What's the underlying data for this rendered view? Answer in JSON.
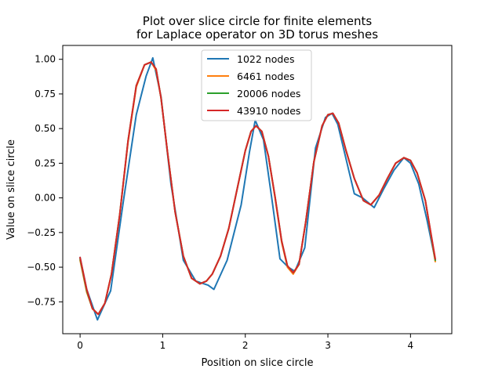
{
  "chart_data": {
    "type": "line",
    "title": "Plot over slice circle for finite elements",
    "subtitle": "for Laplace operator on 3D torus meshes",
    "xlabel": "Position on slice circle",
    "ylabel": "Value on slice circle",
    "xlim": [
      -0.21,
      4.5
    ],
    "ylim": [
      -0.98,
      1.1
    ],
    "xticks": [
      0,
      1,
      2,
      3,
      4
    ],
    "xtick_labels": [
      "0",
      "1",
      "2",
      "3",
      "4"
    ],
    "yticks": [
      -0.75,
      -0.5,
      -0.25,
      0.0,
      0.25,
      0.5,
      0.75,
      1.0
    ],
    "ytick_labels": [
      "−0.75",
      "−0.50",
      "−0.25",
      "0.00",
      "0.25",
      "0.50",
      "0.75",
      "1.00"
    ],
    "grid": false,
    "legend_position": "top-center",
    "series": [
      {
        "name": "1022 nodes",
        "color": "#1f77b4",
        "x": [
          0.0,
          0.08,
          0.21,
          0.37,
          0.52,
          0.68,
          0.8,
          0.88,
          0.98,
          1.1,
          1.25,
          1.4,
          1.5,
          1.55,
          1.62,
          1.78,
          1.95,
          2.05,
          2.12,
          2.22,
          2.32,
          2.42,
          2.52,
          2.6,
          2.72,
          2.85,
          2.97,
          3.05,
          3.12,
          3.22,
          3.32,
          3.42,
          3.56,
          3.68,
          3.8,
          3.92,
          4.0,
          4.1,
          4.2,
          4.3
        ],
        "y": [
          -0.43,
          -0.66,
          -0.88,
          -0.67,
          -0.04,
          0.6,
          0.88,
          1.01,
          0.73,
          0.1,
          -0.45,
          -0.6,
          -0.62,
          -0.63,
          -0.66,
          -0.45,
          -0.05,
          0.33,
          0.56,
          0.42,
          0.0,
          -0.44,
          -0.5,
          -0.53,
          -0.36,
          0.36,
          0.58,
          0.61,
          0.53,
          0.28,
          0.03,
          0.0,
          -0.07,
          0.07,
          0.2,
          0.29,
          0.25,
          0.1,
          -0.16,
          -0.45
        ]
      },
      {
        "name": "6461 nodes",
        "color": "#ff7f0e",
        "x": [
          0.0,
          0.08,
          0.15,
          0.22,
          0.3,
          0.38,
          0.48,
          0.58,
          0.68,
          0.78,
          0.86,
          0.92,
          0.98,
          1.06,
          1.15,
          1.25,
          1.35,
          1.45,
          1.53,
          1.6,
          1.7,
          1.8,
          1.9,
          2.0,
          2.07,
          2.13,
          2.2,
          2.28,
          2.36,
          2.44,
          2.51,
          2.58,
          2.65,
          2.73,
          2.83,
          2.93,
          3.0,
          3.06,
          3.13,
          3.22,
          3.32,
          3.43,
          3.52,
          3.62,
          3.72,
          3.82,
          3.92,
          4.0,
          4.08,
          4.18,
          4.3
        ],
        "y": [
          -0.45,
          -0.68,
          -0.8,
          -0.84,
          -0.76,
          -0.55,
          -0.12,
          0.4,
          0.8,
          0.96,
          0.98,
          0.92,
          0.72,
          0.32,
          -0.1,
          -0.42,
          -0.58,
          -0.62,
          -0.6,
          -0.55,
          -0.42,
          -0.22,
          0.06,
          0.34,
          0.48,
          0.52,
          0.48,
          0.3,
          0.0,
          -0.32,
          -0.5,
          -0.55,
          -0.48,
          -0.18,
          0.26,
          0.52,
          0.6,
          0.61,
          0.54,
          0.34,
          0.14,
          -0.02,
          -0.05,
          0.02,
          0.14,
          0.25,
          0.29,
          0.27,
          0.18,
          -0.02,
          -0.46
        ]
      },
      {
        "name": "20006 nodes",
        "color": "#2ca02c",
        "x": [
          0.0,
          0.08,
          0.15,
          0.22,
          0.3,
          0.38,
          0.48,
          0.58,
          0.68,
          0.78,
          0.86,
          0.92,
          0.98,
          1.06,
          1.15,
          1.25,
          1.35,
          1.45,
          1.53,
          1.6,
          1.7,
          1.8,
          1.9,
          2.0,
          2.07,
          2.13,
          2.2,
          2.28,
          2.36,
          2.44,
          2.51,
          2.58,
          2.65,
          2.73,
          2.83,
          2.93,
          3.0,
          3.06,
          3.13,
          3.22,
          3.32,
          3.43,
          3.52,
          3.62,
          3.72,
          3.82,
          3.92,
          4.0,
          4.08,
          4.18,
          4.3
        ],
        "y": [
          -0.44,
          -0.67,
          -0.8,
          -0.84,
          -0.76,
          -0.55,
          -0.12,
          0.41,
          0.81,
          0.96,
          0.98,
          0.93,
          0.72,
          0.32,
          -0.1,
          -0.42,
          -0.58,
          -0.62,
          -0.6,
          -0.55,
          -0.42,
          -0.22,
          0.06,
          0.34,
          0.48,
          0.52,
          0.48,
          0.3,
          0.01,
          -0.31,
          -0.49,
          -0.54,
          -0.48,
          -0.18,
          0.26,
          0.52,
          0.6,
          0.61,
          0.54,
          0.34,
          0.14,
          -0.02,
          -0.05,
          0.02,
          0.14,
          0.25,
          0.29,
          0.27,
          0.18,
          -0.02,
          -0.45
        ]
      },
      {
        "name": "43910 nodes",
        "color": "#d62728",
        "x": [
          0.0,
          0.08,
          0.15,
          0.22,
          0.3,
          0.38,
          0.48,
          0.58,
          0.68,
          0.78,
          0.86,
          0.92,
          0.98,
          1.06,
          1.15,
          1.25,
          1.35,
          1.45,
          1.53,
          1.6,
          1.7,
          1.8,
          1.9,
          2.0,
          2.07,
          2.13,
          2.2,
          2.28,
          2.36,
          2.44,
          2.51,
          2.58,
          2.65,
          2.73,
          2.83,
          2.93,
          3.0,
          3.06,
          3.13,
          3.22,
          3.32,
          3.43,
          3.52,
          3.62,
          3.72,
          3.82,
          3.92,
          4.0,
          4.08,
          4.18,
          4.3
        ],
        "y": [
          -0.43,
          -0.66,
          -0.8,
          -0.84,
          -0.76,
          -0.55,
          -0.12,
          0.41,
          0.81,
          0.96,
          0.98,
          0.93,
          0.72,
          0.32,
          -0.1,
          -0.42,
          -0.58,
          -0.62,
          -0.6,
          -0.55,
          -0.42,
          -0.22,
          0.06,
          0.34,
          0.48,
          0.52,
          0.48,
          0.3,
          0.01,
          -0.31,
          -0.49,
          -0.54,
          -0.48,
          -0.18,
          0.26,
          0.52,
          0.6,
          0.61,
          0.54,
          0.34,
          0.14,
          -0.02,
          -0.05,
          0.02,
          0.14,
          0.25,
          0.29,
          0.27,
          0.18,
          -0.02,
          -0.44
        ]
      }
    ]
  }
}
